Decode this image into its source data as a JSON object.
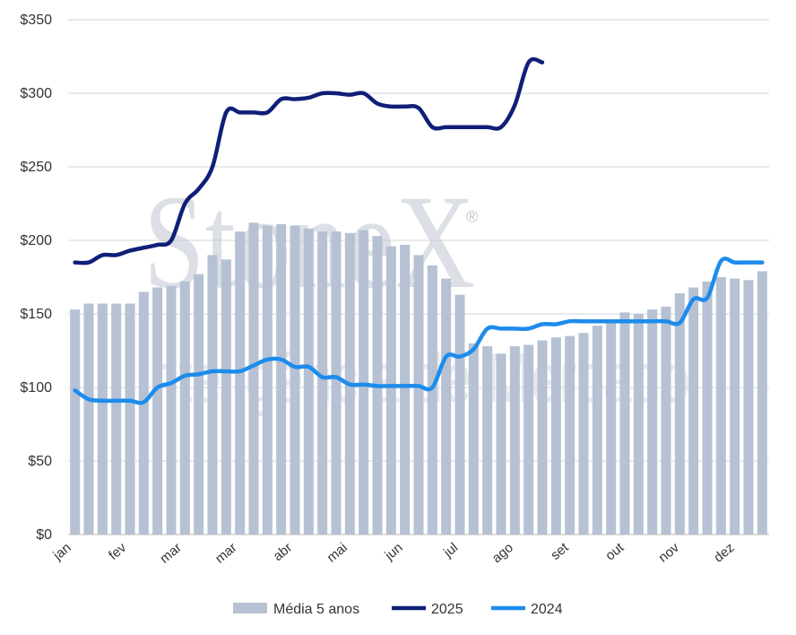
{
  "chart_data": {
    "type": "bar",
    "title": "",
    "xlabel": "",
    "ylabel": "",
    "ylim": [
      0,
      350
    ],
    "yticks": [
      0,
      50,
      100,
      150,
      200,
      250,
      300,
      350
    ],
    "ytick_labels": [
      "$0",
      "$50",
      "$100",
      "$150",
      "$200",
      "$250",
      "$300",
      "$350"
    ],
    "month_labels": [
      "jan",
      "fev",
      "mar",
      "mar",
      "abr",
      "mai",
      "jun",
      "jul",
      "ago",
      "set",
      "out",
      "nov",
      "dez"
    ],
    "grid": "horizontal",
    "legend_position": "bottom",
    "watermark": {
      "brand": "StoneX",
      "registered": "®",
      "subtitle": "Inteligência de Mercado"
    },
    "series": [
      {
        "name": "Média 5 anos",
        "kind": "bar",
        "color": "#b6c1d3",
        "values": [
          153,
          157,
          157,
          157,
          157,
          165,
          168,
          169,
          172,
          177,
          190,
          187,
          206,
          212,
          210,
          211,
          210,
          208,
          206,
          206,
          205,
          207,
          203,
          196,
          197,
          190,
          183,
          174,
          163,
          130,
          128,
          123,
          128,
          129,
          132,
          134,
          135,
          137,
          142,
          145,
          151,
          150,
          153,
          155,
          164,
          168,
          172,
          175,
          174,
          173,
          179
        ]
      },
      {
        "name": "2025",
        "kind": "line",
        "color": "#0f1f78",
        "values": [
          185,
          185,
          190,
          190,
          193,
          195,
          197,
          200,
          225,
          235,
          250,
          287,
          287,
          287,
          287,
          296,
          296,
          297,
          300,
          300,
          299,
          300,
          293,
          291,
          291,
          290,
          277,
          277,
          277,
          277,
          277,
          277,
          292,
          321,
          321
        ]
      },
      {
        "name": "2024",
        "kind": "line",
        "color": "#1c8cec",
        "values": [
          98,
          92,
          91,
          91,
          91,
          90,
          100,
          103,
          108,
          109,
          111,
          111,
          111,
          115,
          119,
          119,
          114,
          114,
          107,
          107,
          102,
          102,
          101,
          101,
          101,
          101,
          100,
          121,
          121,
          126,
          140,
          140,
          140,
          140,
          143,
          143,
          145,
          145,
          145,
          145,
          145,
          145,
          145,
          145,
          144,
          160,
          161,
          186,
          185,
          185,
          185
        ]
      }
    ]
  }
}
